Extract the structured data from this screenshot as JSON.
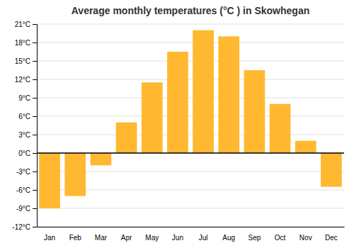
{
  "chart_data": {
    "type": "bar",
    "title": "Average monthly temperatures (°C ) in Skowhegan",
    "categories": [
      "Jan",
      "Feb",
      "Mar",
      "Apr",
      "May",
      "Jun",
      "Jul",
      "Aug",
      "Sep",
      "Oct",
      "Nov",
      "Dec"
    ],
    "values": [
      -9,
      -7,
      -2,
      5,
      11.5,
      16.5,
      20,
      19,
      13.5,
      8,
      2,
      -5.5
    ],
    "color": "#FFB830",
    "ylim": [
      -12,
      21
    ],
    "yticks": [
      {
        "value": -12,
        "label": "-12°C"
      },
      {
        "value": -9,
        "label": "-9°C"
      },
      {
        "value": -6,
        "label": "-6°C"
      },
      {
        "value": -3,
        "label": "-3°C"
      },
      {
        "value": 0,
        "label": "0°C"
      },
      {
        "value": 3,
        "label": "3°C"
      },
      {
        "value": 6,
        "label": "6°C"
      },
      {
        "value": 9,
        "label": "9°C"
      },
      {
        "value": 12,
        "label": "12°C"
      },
      {
        "value": 15,
        "label": "15°C"
      },
      {
        "value": 18,
        "label": "18°C"
      },
      {
        "value": 21,
        "label": "21°C"
      }
    ],
    "grid": true
  }
}
